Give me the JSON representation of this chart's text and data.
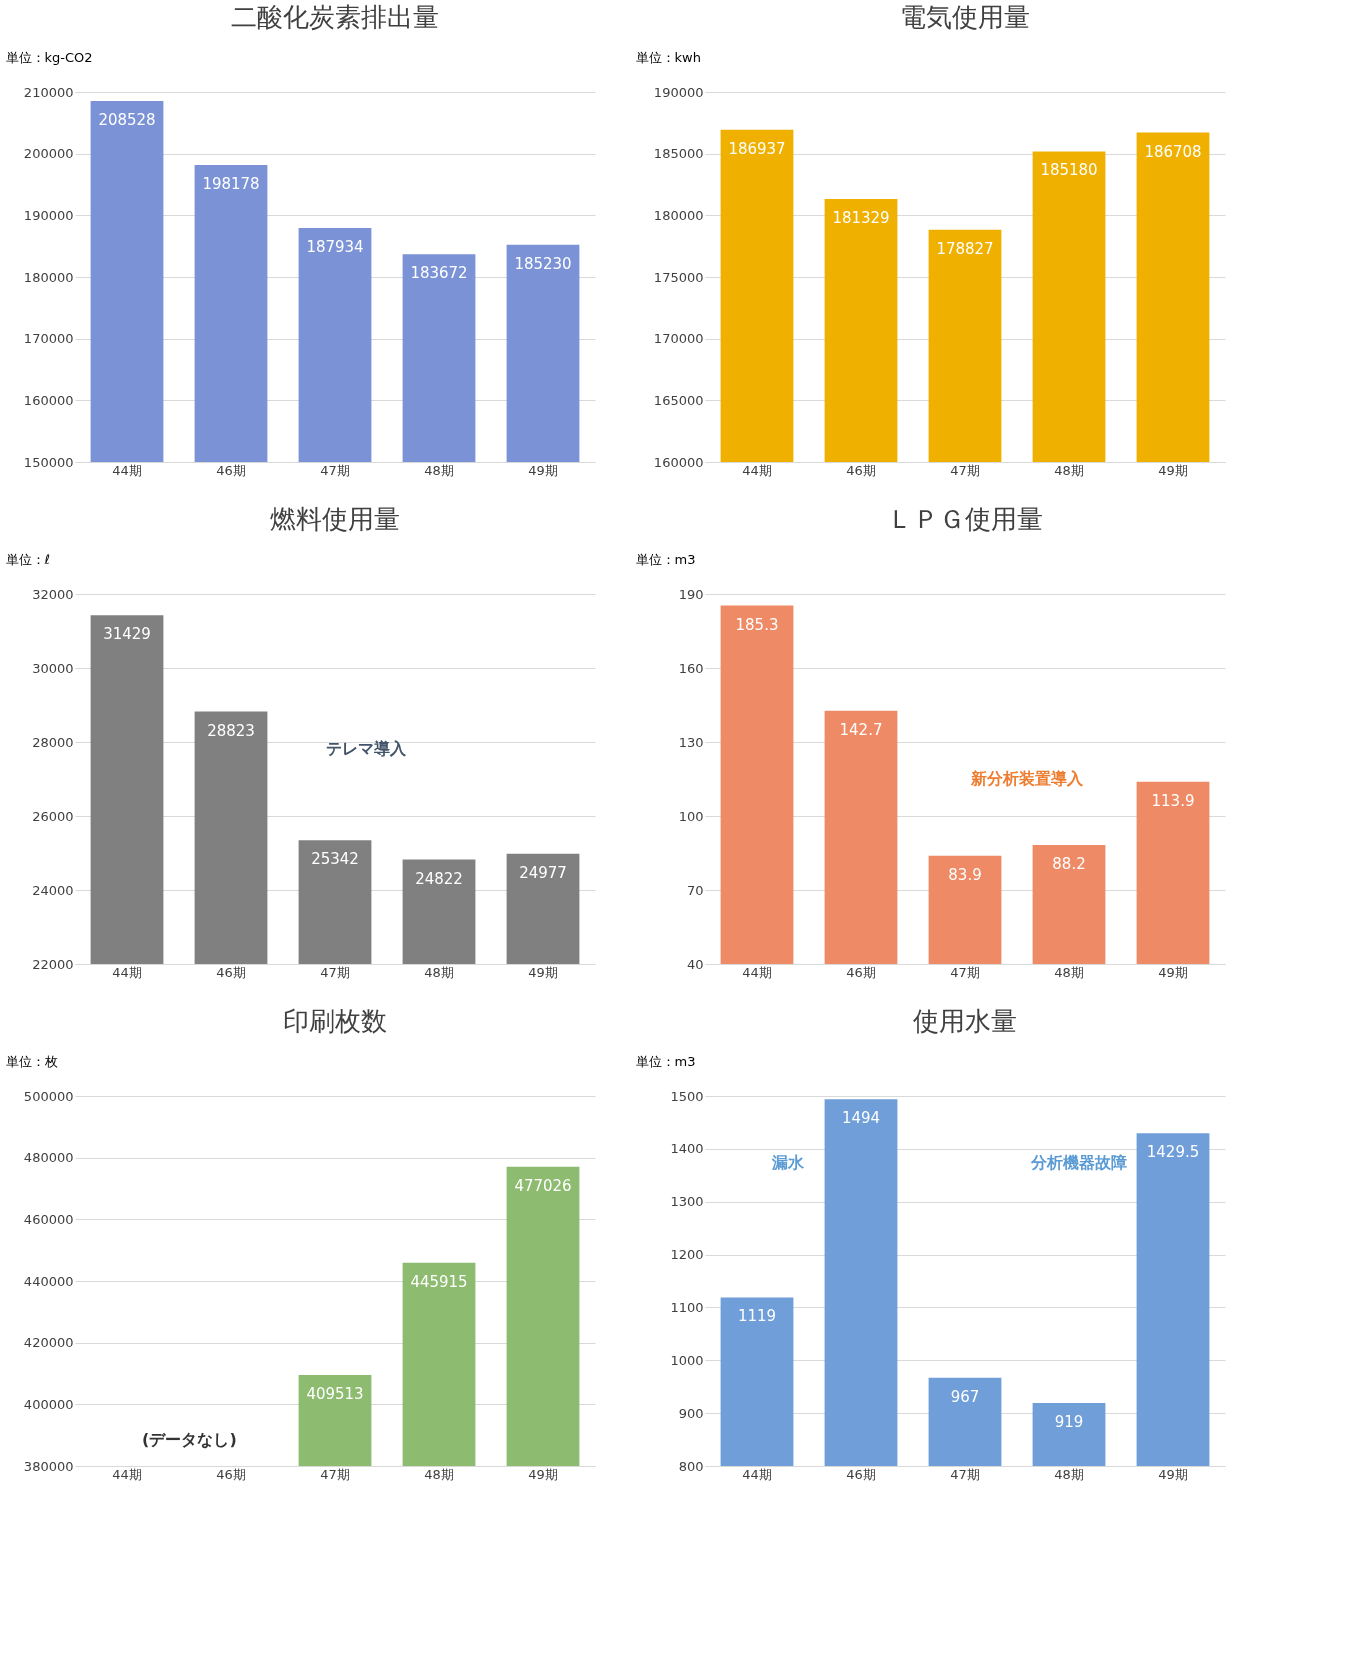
{
  "chart_data": [
    {
      "type": "bar",
      "title": "二酸化炭素排出量",
      "ylabel": "単位：kg-CO2",
      "categories": [
        "44期",
        "46期",
        "47期",
        "48期",
        "49期"
      ],
      "values": [
        208528,
        198178,
        187934,
        183672,
        185230
      ],
      "color": "#7b93d6",
      "ylim": [
        150000,
        210000
      ],
      "yticks": [
        150000,
        160000,
        170000,
        180000,
        190000,
        200000,
        210000
      ],
      "grid": "y",
      "data_labels": true
    },
    {
      "type": "bar",
      "title": "電気使用量",
      "ylabel": "単位：kwh",
      "categories": [
        "44期",
        "46期",
        "47期",
        "48期",
        "49期"
      ],
      "values": [
        186937,
        181329,
        178827,
        185180,
        186708
      ],
      "color": "#efb000",
      "ylim": [
        160000,
        190000
      ],
      "yticks": [
        160000,
        165000,
        170000,
        175000,
        180000,
        185000,
        190000
      ],
      "grid": "y",
      "data_labels": true
    },
    {
      "type": "bar",
      "title": "燃料使用量",
      "ylabel": "単位：ℓ",
      "categories": [
        "44期",
        "46期",
        "47期",
        "48期",
        "49期"
      ],
      "values": [
        31429,
        28823,
        25342,
        24822,
        24977
      ],
      "color": "#808080",
      "ylim": [
        22000,
        32000
      ],
      "yticks": [
        22000,
        24000,
        26000,
        28000,
        30000,
        32000
      ],
      "grid": "y",
      "data_labels": true,
      "annotations": [
        "テレマ導入"
      ]
    },
    {
      "type": "bar",
      "title": "ＬＰＧ使用量",
      "ylabel": "単位：m3",
      "categories": [
        "44期",
        "46期",
        "47期",
        "48期",
        "49期"
      ],
      "values": [
        185.3,
        142.7,
        83.9,
        88.2,
        113.9
      ],
      "color": "#ef8a66",
      "ylim": [
        40,
        190
      ],
      "yticks": [
        40,
        70,
        100,
        130,
        160,
        190
      ],
      "grid": "y",
      "data_labels": true,
      "annotations": [
        "新分析装置導入"
      ]
    },
    {
      "type": "bar",
      "title": "印刷枚数",
      "ylabel": "単位：枚",
      "categories": [
        "44期",
        "46期",
        "47期",
        "48期",
        "49期"
      ],
      "values": [
        null,
        null,
        409513,
        445915,
        477026
      ],
      "color": "#8dbb70",
      "ylim": [
        380000,
        500000
      ],
      "yticks": [
        380000,
        400000,
        420000,
        440000,
        460000,
        480000,
        500000
      ],
      "grid": "y",
      "data_labels": true,
      "annotations": [
        "(データなし)"
      ]
    },
    {
      "type": "bar",
      "title": "使用水量",
      "ylabel": "単位：m3",
      "categories": [
        "44期",
        "46期",
        "47期",
        "48期",
        "49期"
      ],
      "values": [
        1119,
        1494,
        967,
        919,
        1429.5
      ],
      "color": "#6f9ed8",
      "ylim": [
        800,
        1500
      ],
      "yticks": [
        800,
        900,
        1000,
        1100,
        1200,
        1300,
        1400,
        1500
      ],
      "grid": "y",
      "data_labels": true,
      "annotations": [
        "漏水",
        "分析機器故障"
      ]
    }
  ]
}
